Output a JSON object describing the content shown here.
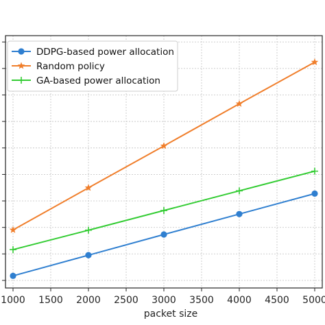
{
  "chart_data": {
    "type": "line",
    "title": "",
    "xlabel": "packet size",
    "ylabel": "",
    "x": [
      1000,
      2000,
      3000,
      4000,
      5000
    ],
    "xlim": [
      900,
      5100
    ],
    "ylim": [
      0,
      1
    ],
    "xticks": [
      1000,
      1500,
      2000,
      2500,
      3000,
      3500,
      4000,
      4500,
      5000
    ],
    "xtick_labels": [
      "1000",
      "1500",
      "2000",
      "2500",
      "3000",
      "3500",
      "4000",
      "4500",
      "5000"
    ],
    "yticks": [
      0.03,
      0.135,
      0.24,
      0.345,
      0.45,
      0.555,
      0.66,
      0.765,
      0.87,
      0.975
    ],
    "grid": true,
    "legend_position": "top-left",
    "series": [
      {
        "name": "DDPG-based power allocation",
        "marker": "circle",
        "color": "#2f7fd0",
        "values": [
          0.048,
          0.13,
          0.212,
          0.293,
          0.374
        ]
      },
      {
        "name": "Random policy",
        "marker": "star",
        "color": "#f07e2b",
        "values": [
          0.23,
          0.397,
          0.563,
          0.73,
          0.895
        ]
      },
      {
        "name": "GA-based power allocation",
        "marker": "plus",
        "color": "#33cc33",
        "values": [
          0.152,
          0.229,
          0.307,
          0.385,
          0.463
        ]
      }
    ]
  }
}
